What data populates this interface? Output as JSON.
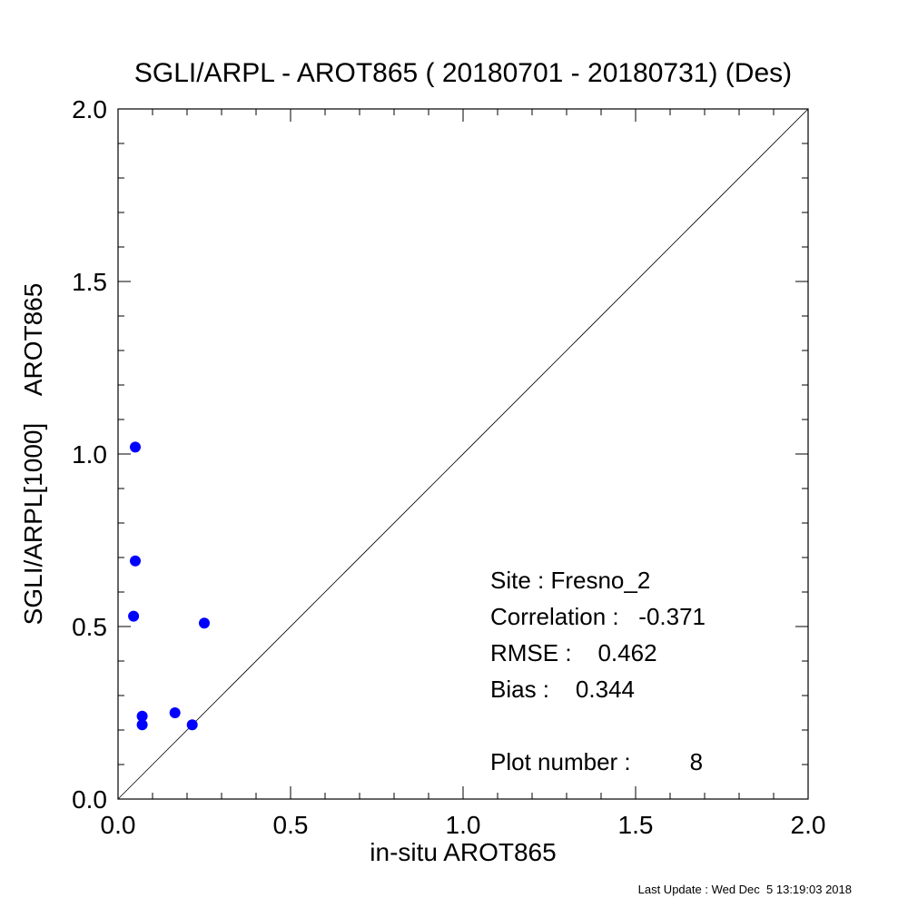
{
  "chart_data": {
    "type": "scatter",
    "title": "SGLI/ARPL - AROT865 ( 20180701 - 20180731) (Des)",
    "xlabel": "in-situ AROT865",
    "ylabel": "SGLI/ARPL[1000]    AROT865",
    "xlim": [
      0.0,
      2.0
    ],
    "ylim": [
      0.0,
      2.0
    ],
    "x_ticks": [
      "0.0",
      "0.5",
      "1.0",
      "1.5",
      "2.0"
    ],
    "y_ticks": [
      "0.0",
      "0.5",
      "1.0",
      "1.5",
      "2.0"
    ],
    "grid": false,
    "reference_line": "1:1",
    "point_color": "#0000ff",
    "points": [
      {
        "x": 0.05,
        "y": 1.02
      },
      {
        "x": 0.05,
        "y": 0.69
      },
      {
        "x": 0.045,
        "y": 0.53
      },
      {
        "x": 0.25,
        "y": 0.51
      },
      {
        "x": 0.165,
        "y": 0.25
      },
      {
        "x": 0.07,
        "y": 0.24
      },
      {
        "x": 0.07,
        "y": 0.215
      },
      {
        "x": 0.215,
        "y": 0.215
      }
    ]
  },
  "stats": {
    "site": "Site : Fresno_2",
    "correlation": "Correlation :   -0.371",
    "rmse": "RMSE :    0.462",
    "bias": "Bias :    0.344",
    "plot_number": "Plot number :         8"
  },
  "footer": "Last Update : Wed Dec  5 13:19:03 2018"
}
